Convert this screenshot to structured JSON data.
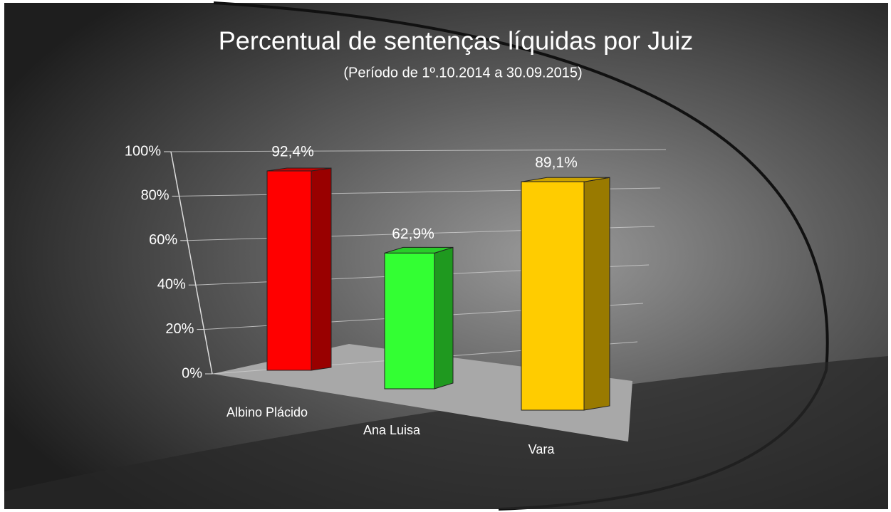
{
  "chart_data": {
    "type": "bar",
    "title": "Percentual de sentenças líquidas por Juiz",
    "subtitle": "(Período de 1º.10.2014  a  30.09.2015)",
    "categories": [
      "Albino Plácido",
      "Ana Luisa",
      "Vara"
    ],
    "values": [
      92.4,
      62.9,
      89.1
    ],
    "value_labels": [
      "92,4%",
      "62,9%",
      "89,1%"
    ],
    "colors": [
      "#ff0000",
      "#33ff33",
      "#ffcc00"
    ],
    "ylim": [
      0,
      100
    ],
    "yticks": [
      {
        "value": 0,
        "label": "0%"
      },
      {
        "value": 20,
        "label": "20%"
      },
      {
        "value": 40,
        "label": "40%"
      },
      {
        "value": 60,
        "label": "60%"
      },
      {
        "value": 80,
        "label": "80%"
      },
      {
        "value": 100,
        "label": "100%"
      }
    ],
    "grid": true
  }
}
